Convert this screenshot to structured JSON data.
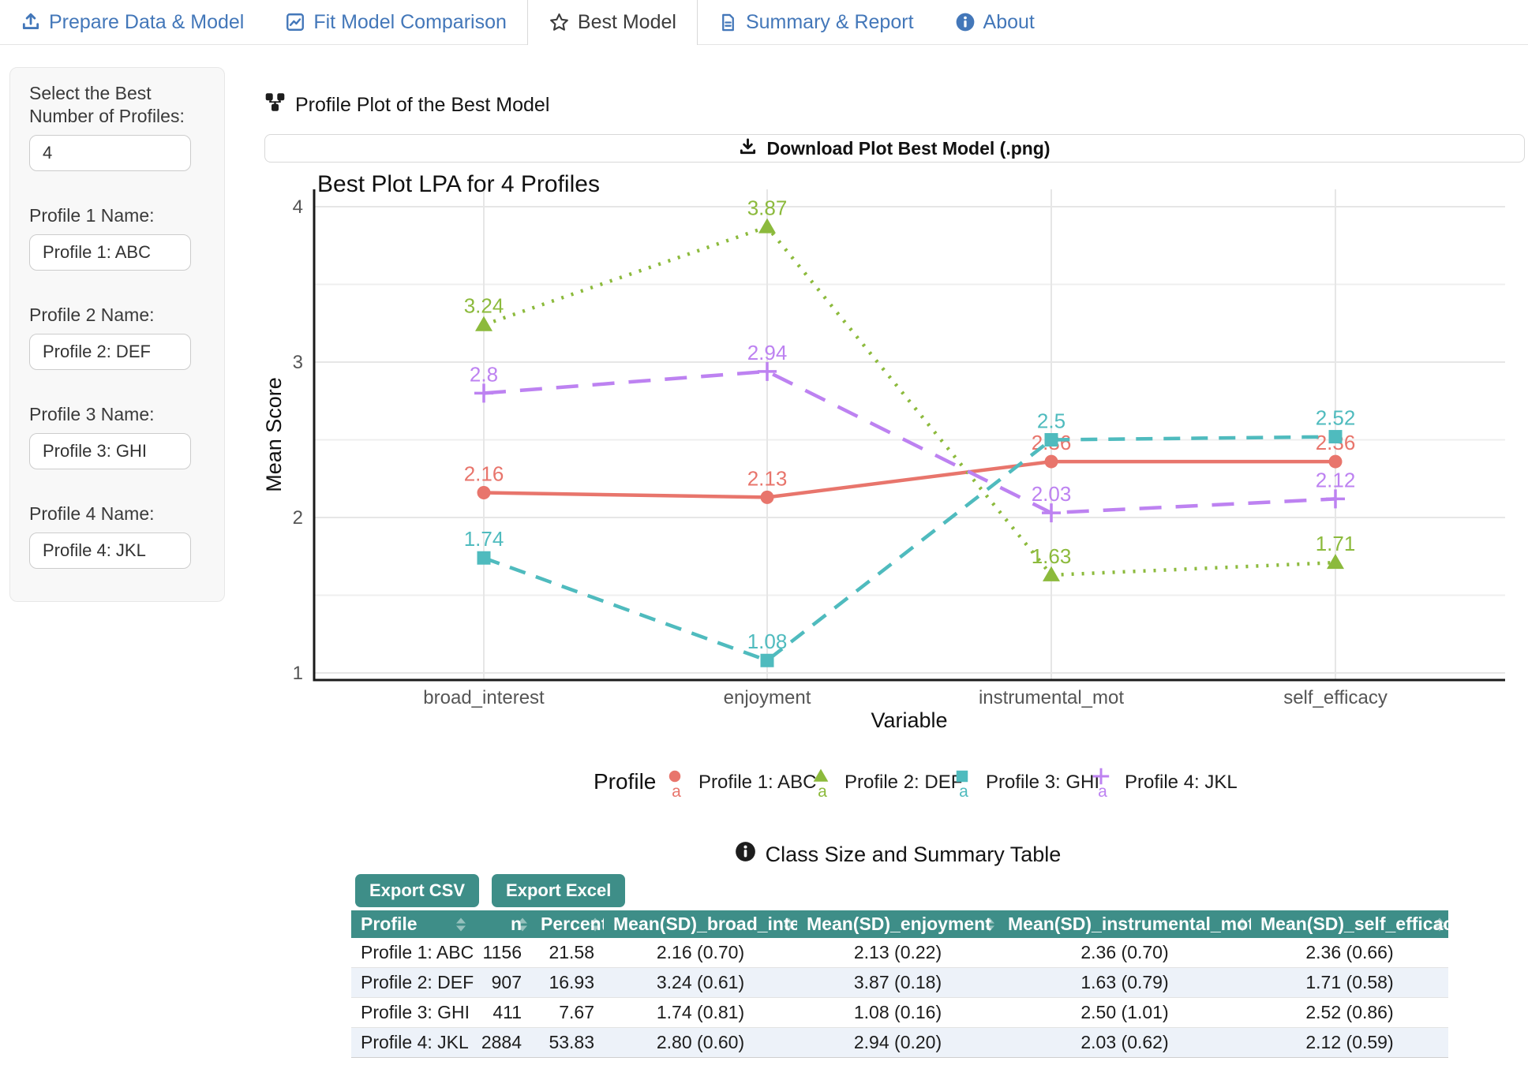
{
  "tabs": [
    {
      "label": "Prepare Data & Model",
      "icon": "upload-icon",
      "active": false
    },
    {
      "label": "Fit Model Comparison",
      "icon": "chart-line-icon",
      "active": false
    },
    {
      "label": "Best Model",
      "icon": "star-icon",
      "active": true
    },
    {
      "label": "Summary & Report",
      "icon": "file-icon",
      "active": false
    },
    {
      "label": "About",
      "icon": "info-icon",
      "active": false
    }
  ],
  "sidebar": {
    "profiles_label": "Select the Best Number of Profiles:",
    "profiles_value": "4",
    "fields": [
      {
        "label": "Profile 1 Name:",
        "value": "Profile 1: ABC"
      },
      {
        "label": "Profile 2 Name:",
        "value": "Profile 2: DEF"
      },
      {
        "label": "Profile 3 Name:",
        "value": "Profile 3: GHI"
      },
      {
        "label": "Profile 4 Name:",
        "value": "Profile 4: JKL"
      }
    ]
  },
  "plot_section": {
    "heading": "Profile Plot of the Best Model",
    "download_label": "Download Plot Best Model (.png)"
  },
  "chart_data": {
    "type": "line",
    "title": "Best Plot LPA for 4 Profiles",
    "xlabel": "Variable",
    "ylabel": "Mean Score",
    "categories": [
      "broad_interest",
      "enjoyment",
      "instrumental_mot",
      "self_efficacy"
    ],
    "yticks": [
      1,
      2,
      3,
      4
    ],
    "ylim": [
      1,
      4
    ],
    "grid": true,
    "legend_title": "Profile",
    "legend_position": "bottom",
    "series": [
      {
        "name": "Profile 1: ABC",
        "color": "#E8756C",
        "linestyle": "solid",
        "marker": "circle",
        "values": [
          2.16,
          2.13,
          2.36,
          2.36
        ],
        "labels": [
          "2.16",
          "2.13",
          "2.36",
          "2.36"
        ]
      },
      {
        "name": "Profile 2: DEF",
        "color": "#8CBA3C",
        "linestyle": "dotted",
        "marker": "triangle",
        "values": [
          3.24,
          3.87,
          1.63,
          1.71
        ],
        "labels": [
          "3.24",
          "3.87",
          "1.63",
          "1.71"
        ]
      },
      {
        "name": "Profile 3: GHI",
        "color": "#4FBBBE",
        "linestyle": "dashed",
        "marker": "square",
        "values": [
          1.74,
          1.08,
          2.5,
          2.52
        ],
        "labels": [
          "1.74",
          "1.08",
          "2.5",
          "2.52"
        ]
      },
      {
        "name": "Profile 4: JKL",
        "color": "#BD82F1",
        "linestyle": "longdash",
        "marker": "plus",
        "values": [
          2.8,
          2.94,
          2.03,
          2.12
        ],
        "labels": [
          "2.8",
          "2.94",
          "2.03",
          "2.12"
        ]
      }
    ],
    "legend_key_glyph": "a"
  },
  "table_section": {
    "heading": "Class Size and Summary Table",
    "buttons": [
      {
        "label": "Export CSV"
      },
      {
        "label": "Export Excel"
      }
    ],
    "columns": [
      "Profile",
      "n",
      "Percent",
      "Mean(SD)_broad_interest",
      "Mean(SD)_enjoyment",
      "Mean(SD)_instrumental_mot",
      "Mean(SD)_self_efficacy"
    ],
    "rows": [
      [
        "Profile 1: ABC",
        "1156",
        "21.58",
        "2.16 (0.70)",
        "2.13 (0.22)",
        "2.36 (0.70)",
        "2.36 (0.66)"
      ],
      [
        "Profile 2: DEF",
        "907",
        "16.93",
        "3.24 (0.61)",
        "3.87 (0.18)",
        "1.63 (0.79)",
        "1.71 (0.58)"
      ],
      [
        "Profile 3: GHI",
        "411",
        "7.67",
        "1.74 (0.81)",
        "1.08 (0.16)",
        "2.50 (1.01)",
        "2.52 (0.86)"
      ],
      [
        "Profile 4: JKL",
        "2884",
        "53.83",
        "2.80 (0.60)",
        "2.94 (0.20)",
        "2.03 (0.62)",
        "2.12 (0.59)"
      ]
    ]
  },
  "colors": {
    "tab_blue": "#4377B9",
    "accent_teal": "#3E8E88",
    "stripe": "#EDF2F9",
    "axis_text": "#555555",
    "gridline": "#e7e7e7"
  }
}
